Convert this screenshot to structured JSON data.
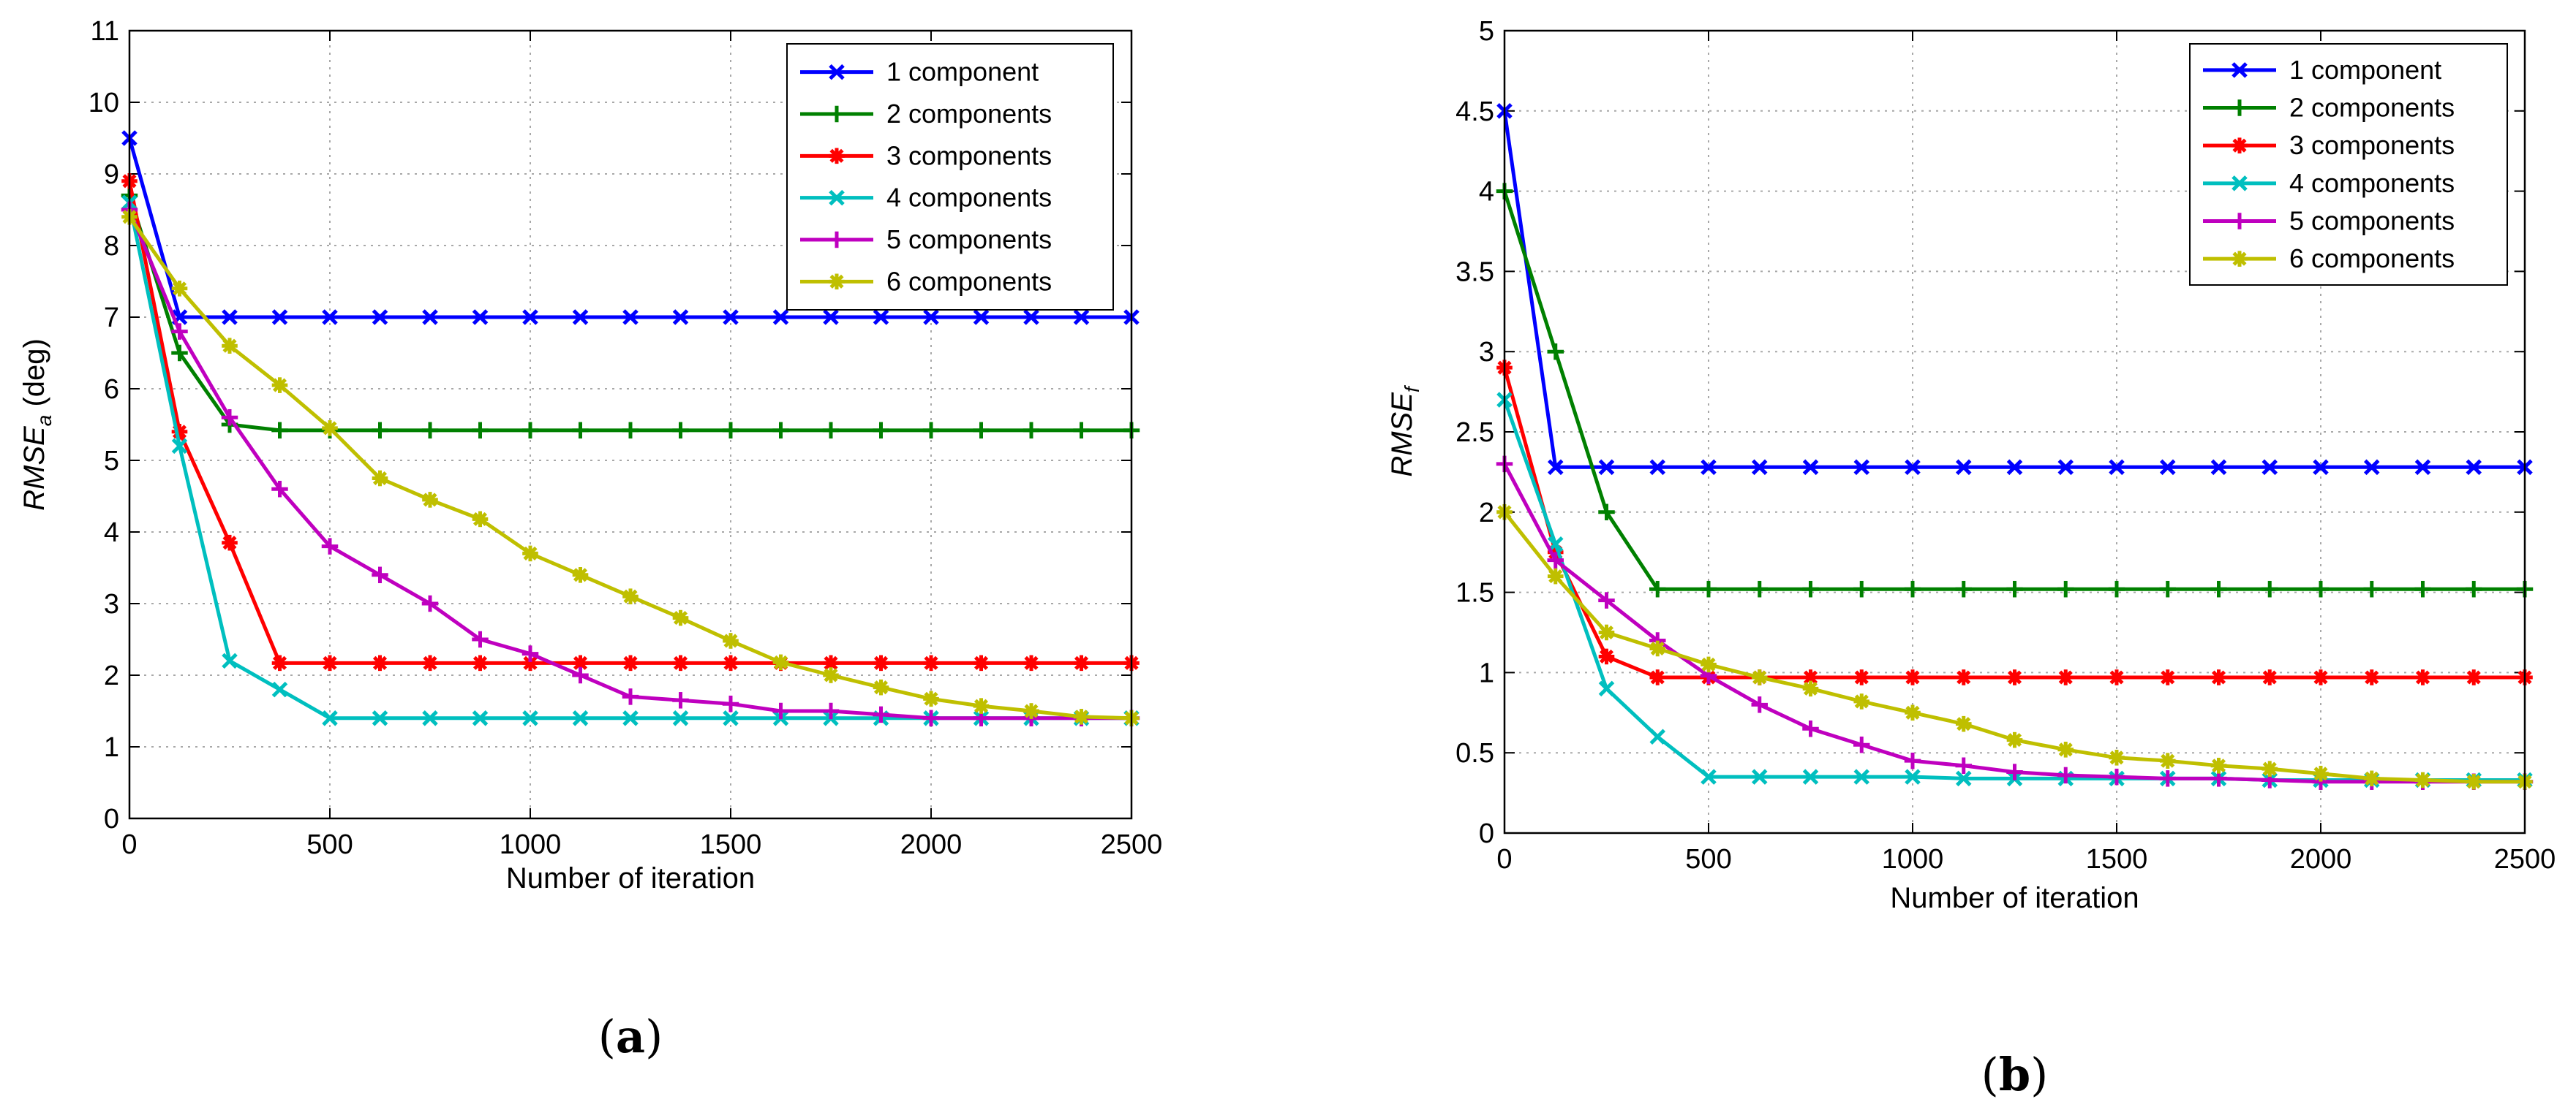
{
  "chart_data": [
    {
      "type": "line",
      "panel_label": "a",
      "title": "",
      "xlabel": "Number of iteration",
      "ylabel": {
        "base": "RMSE",
        "sub": "a",
        "unit": " (deg)"
      },
      "xlim": [
        0,
        2500
      ],
      "ylim": [
        0,
        11
      ],
      "xticks": [
        "0",
        "500",
        "1000",
        "1500",
        "2000",
        "2500"
      ],
      "yticks": [
        "0",
        "1",
        "2",
        "3",
        "4",
        "5",
        "6",
        "7",
        "8",
        "9",
        "10",
        "11"
      ],
      "grid": true,
      "legend_position": "top-right",
      "x": [
        0,
        125,
        250,
        375,
        500,
        625,
        750,
        875,
        1000,
        1125,
        1250,
        1375,
        1500,
        1625,
        1750,
        1875,
        2000,
        2125,
        2250,
        2375,
        2500
      ],
      "series": [
        {
          "name": "1 component",
          "color": "#0000ff",
          "marker": "x",
          "values": [
            9.5,
            7.0,
            7.0,
            7.0,
            7.0,
            7.0,
            7.0,
            7.0,
            7.0,
            7.0,
            7.0,
            7.0,
            7.0,
            7.0,
            7.0,
            7.0,
            7.0,
            7.0,
            7.0,
            7.0,
            7.0
          ]
        },
        {
          "name": "2 components",
          "color": "#008000",
          "marker": "+",
          "values": [
            8.7,
            6.5,
            5.5,
            5.42,
            5.42,
            5.42,
            5.42,
            5.42,
            5.42,
            5.42,
            5.42,
            5.42,
            5.42,
            5.42,
            5.42,
            5.42,
            5.42,
            5.42,
            5.42,
            5.42,
            5.42
          ]
        },
        {
          "name": "3 components",
          "color": "#ff0000",
          "marker": "*",
          "values": [
            8.9,
            5.4,
            3.85,
            2.17,
            2.17,
            2.17,
            2.17,
            2.17,
            2.17,
            2.17,
            2.17,
            2.17,
            2.17,
            2.17,
            2.17,
            2.17,
            2.17,
            2.17,
            2.17,
            2.17,
            2.17
          ]
        },
        {
          "name": "4 components",
          "color": "#00bfbf",
          "marker": "x",
          "values": [
            8.6,
            5.2,
            2.2,
            1.8,
            1.4,
            1.4,
            1.4,
            1.4,
            1.4,
            1.4,
            1.4,
            1.4,
            1.4,
            1.4,
            1.4,
            1.4,
            1.4,
            1.4,
            1.4,
            1.4,
            1.4
          ]
        },
        {
          "name": "5 components",
          "color": "#bf00bf",
          "marker": "+",
          "values": [
            8.5,
            6.8,
            5.6,
            4.6,
            3.8,
            3.4,
            3.0,
            2.5,
            2.3,
            2.0,
            1.7,
            1.65,
            1.6,
            1.5,
            1.5,
            1.45,
            1.4,
            1.4,
            1.4,
            1.4,
            1.4
          ]
        },
        {
          "name": "6 components",
          "color": "#bfbf00",
          "marker": "*",
          "values": [
            8.4,
            7.4,
            6.6,
            6.05,
            5.45,
            4.75,
            4.45,
            4.18,
            3.7,
            3.4,
            3.1,
            2.8,
            2.48,
            2.18,
            2.0,
            1.83,
            1.67,
            1.57,
            1.5,
            1.42,
            1.4
          ]
        }
      ]
    },
    {
      "type": "line",
      "panel_label": "b",
      "title": "",
      "xlabel": "Number of iteration",
      "ylabel": {
        "base": "RMSE",
        "sub": "f",
        "unit": ""
      },
      "xlim": [
        0,
        2500
      ],
      "ylim": [
        0,
        5
      ],
      "xticks": [
        "0",
        "500",
        "1000",
        "1500",
        "2000",
        "2500"
      ],
      "yticks": [
        "0",
        "0.5",
        "1",
        "1.5",
        "2",
        "2.5",
        "3",
        "3.5",
        "4",
        "4.5",
        "5"
      ],
      "grid": true,
      "legend_position": "top-right",
      "x": [
        0,
        125,
        250,
        375,
        500,
        625,
        750,
        875,
        1000,
        1125,
        1250,
        1375,
        1500,
        1625,
        1750,
        1875,
        2000,
        2125,
        2250,
        2375,
        2500
      ],
      "series": [
        {
          "name": "1 component",
          "color": "#0000ff",
          "marker": "x",
          "values": [
            4.5,
            2.28,
            2.28,
            2.28,
            2.28,
            2.28,
            2.28,
            2.28,
            2.28,
            2.28,
            2.28,
            2.28,
            2.28,
            2.28,
            2.28,
            2.28,
            2.28,
            2.28,
            2.28,
            2.28,
            2.28
          ]
        },
        {
          "name": "2 components",
          "color": "#008000",
          "marker": "+",
          "values": [
            4.0,
            3.0,
            2.0,
            1.52,
            1.52,
            1.52,
            1.52,
            1.52,
            1.52,
            1.52,
            1.52,
            1.52,
            1.52,
            1.52,
            1.52,
            1.52,
            1.52,
            1.52,
            1.52,
            1.52,
            1.52
          ]
        },
        {
          "name": "3 components",
          "color": "#ff0000",
          "marker": "*",
          "values": [
            2.9,
            1.75,
            1.1,
            0.97,
            0.97,
            0.97,
            0.97,
            0.97,
            0.97,
            0.97,
            0.97,
            0.97,
            0.97,
            0.97,
            0.97,
            0.97,
            0.97,
            0.97,
            0.97,
            0.97,
            0.97
          ]
        },
        {
          "name": "4 components",
          "color": "#00bfbf",
          "marker": "x",
          "values": [
            2.7,
            1.8,
            0.9,
            0.6,
            0.35,
            0.35,
            0.35,
            0.35,
            0.35,
            0.34,
            0.34,
            0.34,
            0.34,
            0.34,
            0.34,
            0.33,
            0.33,
            0.33,
            0.33,
            0.33,
            0.33
          ]
        },
        {
          "name": "5 components",
          "color": "#bf00bf",
          "marker": "+",
          "values": [
            2.3,
            1.7,
            1.45,
            1.2,
            0.98,
            0.8,
            0.65,
            0.55,
            0.45,
            0.42,
            0.38,
            0.36,
            0.35,
            0.34,
            0.34,
            0.33,
            0.32,
            0.32,
            0.32,
            0.32,
            0.32
          ]
        },
        {
          "name": "6 components",
          "color": "#bfbf00",
          "marker": "*",
          "values": [
            2.0,
            1.6,
            1.25,
            1.15,
            1.05,
            0.97,
            0.9,
            0.82,
            0.75,
            0.68,
            0.58,
            0.52,
            0.47,
            0.45,
            0.42,
            0.4,
            0.37,
            0.34,
            0.33,
            0.32,
            0.32
          ]
        }
      ]
    }
  ]
}
